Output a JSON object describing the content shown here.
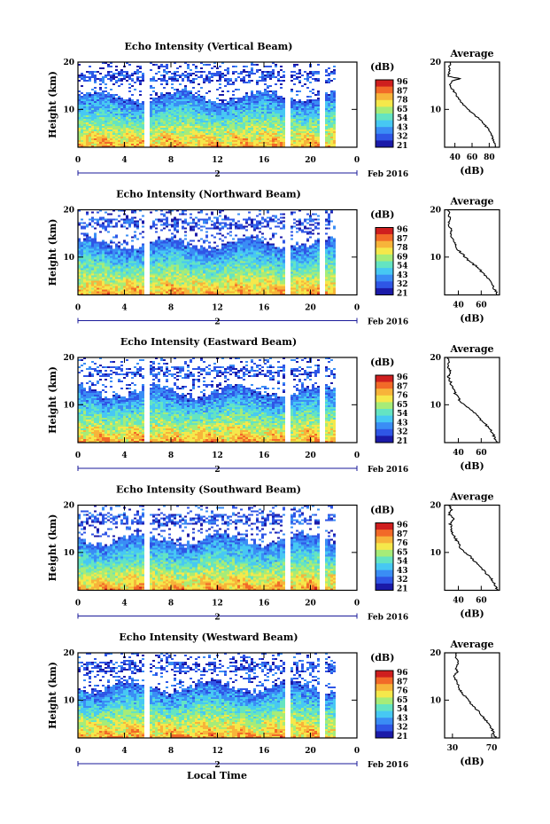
{
  "chart_data": [
    {
      "type": "heatmap",
      "title": "Echo Intensity (Vertical Beam)",
      "ylabel": "Height (km)",
      "x_ticks": [
        "0",
        "4",
        "8",
        "12",
        "16",
        "20",
        "0"
      ],
      "date_label": "2",
      "date_suffix": "Feb 2016",
      "ylim": [
        2,
        20
      ],
      "y_ticks": [
        "20",
        "10"
      ],
      "colorbar": {
        "unit": "(dB)",
        "ticks": [
          "96",
          "87",
          "78",
          "65",
          "54",
          "43",
          "32",
          "21"
        ]
      },
      "data_gaps_hours": [
        [
          5.6,
          6.1
        ],
        [
          17.8,
          18.2
        ],
        [
          20.6,
          21.1
        ]
      ],
      "data_end_hour": 22.0,
      "average": {
        "title": "Average",
        "xlabel": "(dB)",
        "x_ticks": [
          "40",
          "60",
          "80"
        ],
        "y_ticks": [
          "20",
          "10"
        ],
        "xlim": [
          28,
          92
        ],
        "ylim": [
          2,
          20
        ],
        "profile": [
          [
            2,
            88
          ],
          [
            3,
            86
          ],
          [
            4,
            84
          ],
          [
            5,
            82
          ],
          [
            6,
            78
          ],
          [
            7,
            74
          ],
          [
            8,
            68
          ],
          [
            9,
            62
          ],
          [
            10,
            55
          ],
          [
            11,
            50
          ],
          [
            12,
            45
          ],
          [
            13,
            42
          ],
          [
            14,
            38
          ],
          [
            15,
            34
          ],
          [
            16,
            36
          ],
          [
            16.5,
            46
          ],
          [
            17,
            32
          ],
          [
            18,
            34
          ],
          [
            19,
            33
          ],
          [
            20,
            35
          ]
        ]
      }
    },
    {
      "type": "heatmap",
      "title": "Echo Intensity (Northward Beam)",
      "ylabel": "Height (km)",
      "x_ticks": [
        "0",
        "4",
        "8",
        "12",
        "16",
        "20",
        "0"
      ],
      "date_label": "2",
      "date_suffix": "Feb 2016",
      "ylim": [
        2,
        20
      ],
      "y_ticks": [
        "20",
        "10"
      ],
      "colorbar": {
        "unit": "(dB)",
        "ticks": [
          "96",
          "87",
          "78",
          "69",
          "54",
          "43",
          "32",
          "21"
        ]
      },
      "data_gaps_hours": [
        [
          5.6,
          6.1
        ],
        [
          17.8,
          18.2
        ],
        [
          20.6,
          21.1
        ]
      ],
      "data_end_hour": 22.0,
      "average": {
        "title": "Average",
        "xlabel": "(dB)",
        "x_ticks": [
          "40",
          "60"
        ],
        "y_ticks": [
          "20",
          "10"
        ],
        "xlim": [
          28,
          76
        ],
        "ylim": [
          2,
          20
        ],
        "profile": [
          [
            2,
            74
          ],
          [
            3,
            72
          ],
          [
            4,
            70
          ],
          [
            5,
            68
          ],
          [
            6,
            64
          ],
          [
            7,
            60
          ],
          [
            8,
            56
          ],
          [
            9,
            50
          ],
          [
            10,
            46
          ],
          [
            11,
            42
          ],
          [
            12,
            38
          ],
          [
            13,
            37
          ],
          [
            14,
            35
          ],
          [
            15,
            33
          ],
          [
            16,
            34
          ],
          [
            17,
            31
          ],
          [
            18,
            33
          ],
          [
            19,
            32
          ],
          [
            20,
            31
          ]
        ]
      }
    },
    {
      "type": "heatmap",
      "title": "Echo Intensity (Eastward Beam)",
      "ylabel": "Height (km)",
      "x_ticks": [
        "0",
        "4",
        "8",
        "12",
        "16",
        "20",
        "0"
      ],
      "date_label": "2",
      "date_suffix": "Feb 2016",
      "ylim": [
        2,
        20
      ],
      "y_ticks": [
        "20",
        "10"
      ],
      "colorbar": {
        "unit": "(dB)",
        "ticks": [
          "96",
          "87",
          "76",
          "65",
          "54",
          "43",
          "32",
          "21"
        ]
      },
      "data_gaps_hours": [
        [
          5.6,
          6.1
        ],
        [
          17.8,
          18.2
        ],
        [
          20.6,
          21.1
        ]
      ],
      "data_end_hour": 22.0,
      "average": {
        "title": "Average",
        "xlabel": "(dB)",
        "x_ticks": [
          "40",
          "60"
        ],
        "y_ticks": [
          "20",
          "10"
        ],
        "xlim": [
          28,
          76
        ],
        "ylim": [
          2,
          20
        ],
        "profile": [
          [
            2,
            74
          ],
          [
            3,
            72
          ],
          [
            4,
            70
          ],
          [
            5,
            67
          ],
          [
            6,
            63
          ],
          [
            7,
            59
          ],
          [
            8,
            55
          ],
          [
            9,
            50
          ],
          [
            10,
            45
          ],
          [
            11,
            41
          ],
          [
            12,
            38
          ],
          [
            13,
            36
          ],
          [
            14,
            34
          ],
          [
            15,
            33
          ],
          [
            16,
            31
          ],
          [
            17,
            33
          ],
          [
            18,
            31
          ],
          [
            19,
            32
          ],
          [
            20,
            31
          ]
        ]
      }
    },
    {
      "type": "heatmap",
      "title": "Echo Intensity (Southward Beam)",
      "ylabel": "Height (km)",
      "x_ticks": [
        "0",
        "4",
        "8",
        "12",
        "16",
        "20",
        "0"
      ],
      "date_label": "2",
      "date_suffix": "Feb 2016",
      "ylim": [
        2,
        20
      ],
      "y_ticks": [
        "20",
        "10"
      ],
      "colorbar": {
        "unit": "(dB)",
        "ticks": [
          "96",
          "87",
          "76",
          "65",
          "54",
          "43",
          "32",
          "21"
        ]
      },
      "data_gaps_hours": [
        [
          5.6,
          6.1
        ],
        [
          17.8,
          18.2
        ],
        [
          20.6,
          21.1
        ]
      ],
      "data_end_hour": 22.0,
      "average": {
        "title": "Average",
        "xlabel": "(dB)",
        "x_ticks": [
          "40",
          "60"
        ],
        "y_ticks": [
          "20",
          "10"
        ],
        "xlim": [
          28,
          76
        ],
        "ylim": [
          2,
          20
        ],
        "profile": [
          [
            2,
            74
          ],
          [
            3,
            72
          ],
          [
            4,
            70
          ],
          [
            5,
            67
          ],
          [
            6,
            63
          ],
          [
            7,
            59
          ],
          [
            8,
            55
          ],
          [
            9,
            51
          ],
          [
            10,
            46
          ],
          [
            11,
            42
          ],
          [
            12,
            40
          ],
          [
            13,
            37
          ],
          [
            14,
            35
          ],
          [
            15,
            34
          ],
          [
            16,
            33
          ],
          [
            17,
            36
          ],
          [
            18,
            32
          ],
          [
            19,
            34
          ],
          [
            20,
            33
          ]
        ]
      }
    },
    {
      "type": "heatmap",
      "title": "Echo Intensity (Westward Beam)",
      "ylabel": "Height (km)",
      "x_ticks": [
        "0",
        "4",
        "8",
        "12",
        "16",
        "20",
        "0"
      ],
      "date_label": "2",
      "date_suffix": "Feb 2016",
      "ylim": [
        2,
        20
      ],
      "y_ticks": [
        "20",
        "10"
      ],
      "colorbar": {
        "unit": "(dB)",
        "ticks": [
          "96",
          "87",
          "76",
          "65",
          "54",
          "43",
          "32",
          "21"
        ]
      },
      "data_gaps_hours": [
        [
          5.6,
          6.1
        ],
        [
          17.8,
          18.2
        ],
        [
          20.6,
          21.1
        ]
      ],
      "data_end_hour": 22.0,
      "average": {
        "title": "Average",
        "xlabel": "(dB)",
        "x_ticks": [
          "30",
          "70"
        ],
        "y_ticks": [
          "20",
          "10"
        ],
        "xlim": [
          22,
          78
        ],
        "ylim": [
          2,
          20
        ],
        "profile": [
          [
            2,
            74
          ],
          [
            3,
            72
          ],
          [
            4,
            70
          ],
          [
            5,
            67
          ],
          [
            6,
            63
          ],
          [
            7,
            59
          ],
          [
            8,
            55
          ],
          [
            9,
            50
          ],
          [
            10,
            46
          ],
          [
            11,
            42
          ],
          [
            12,
            38
          ],
          [
            13,
            36
          ],
          [
            14,
            34
          ],
          [
            15,
            32
          ],
          [
            16,
            35
          ],
          [
            17,
            33
          ],
          [
            18,
            36
          ],
          [
            19,
            34
          ],
          [
            20,
            33
          ]
        ]
      }
    }
  ],
  "xlabel": "Local Time",
  "colormap": [
    "#1b1aa8",
    "#2f56e6",
    "#3a8df5",
    "#47c8f3",
    "#64e4c2",
    "#a6ec78",
    "#f5e84b",
    "#f7b43a",
    "#f26a28",
    "#cf1f1f"
  ]
}
